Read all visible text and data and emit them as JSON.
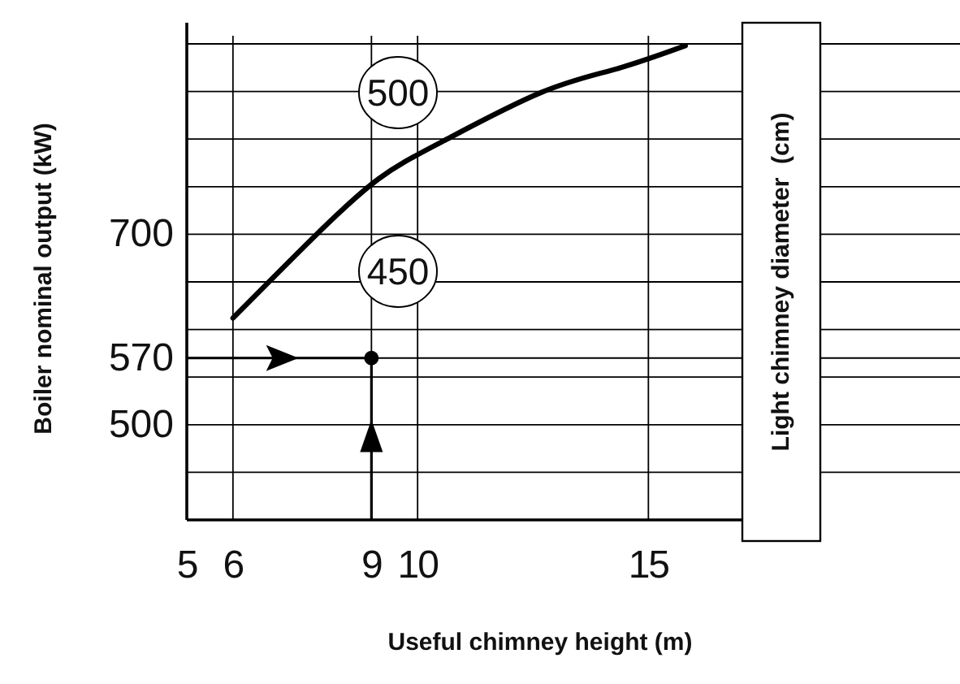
{
  "chart_data": {
    "type": "line",
    "xlabel": "Useful chimney height (m)",
    "ylabel": "Boiler nominal output (kW)",
    "y2label": "Light chimney diameter  (cm)",
    "xlim": [
      5,
      17
    ],
    "xticks": [
      5,
      6,
      9,
      10,
      15
    ],
    "ylim": [
      400,
      900
    ],
    "yticks": [
      {
        "value": 450,
        "label": null
      },
      500,
      {
        "value": 550,
        "label": null
      },
      570,
      {
        "value": 600,
        "label": null
      },
      {
        "value": 650,
        "label": null
      },
      700,
      {
        "value": 750,
        "label": null
      },
      {
        "value": 800,
        "label": null
      },
      {
        "value": 850,
        "label": null
      },
      {
        "value": 900,
        "label": null
      }
    ],
    "grid": true,
    "line_style": "solid",
    "series": [
      {
        "type": "line",
        "color": "#000000",
        "x": [
          6,
          7.75,
          9.15,
          10.56,
          12.68,
          14.33,
          15.8
        ],
        "values": [
          612,
          697,
          758,
          798,
          849,
          874,
          898
        ]
      },
      {
        "type": "scatter",
        "color": "#000000",
        "marker": "circle",
        "x": [
          9
        ],
        "values": [
          570
        ]
      }
    ],
    "annotations": [
      "500",
      "450"
    ]
  }
}
